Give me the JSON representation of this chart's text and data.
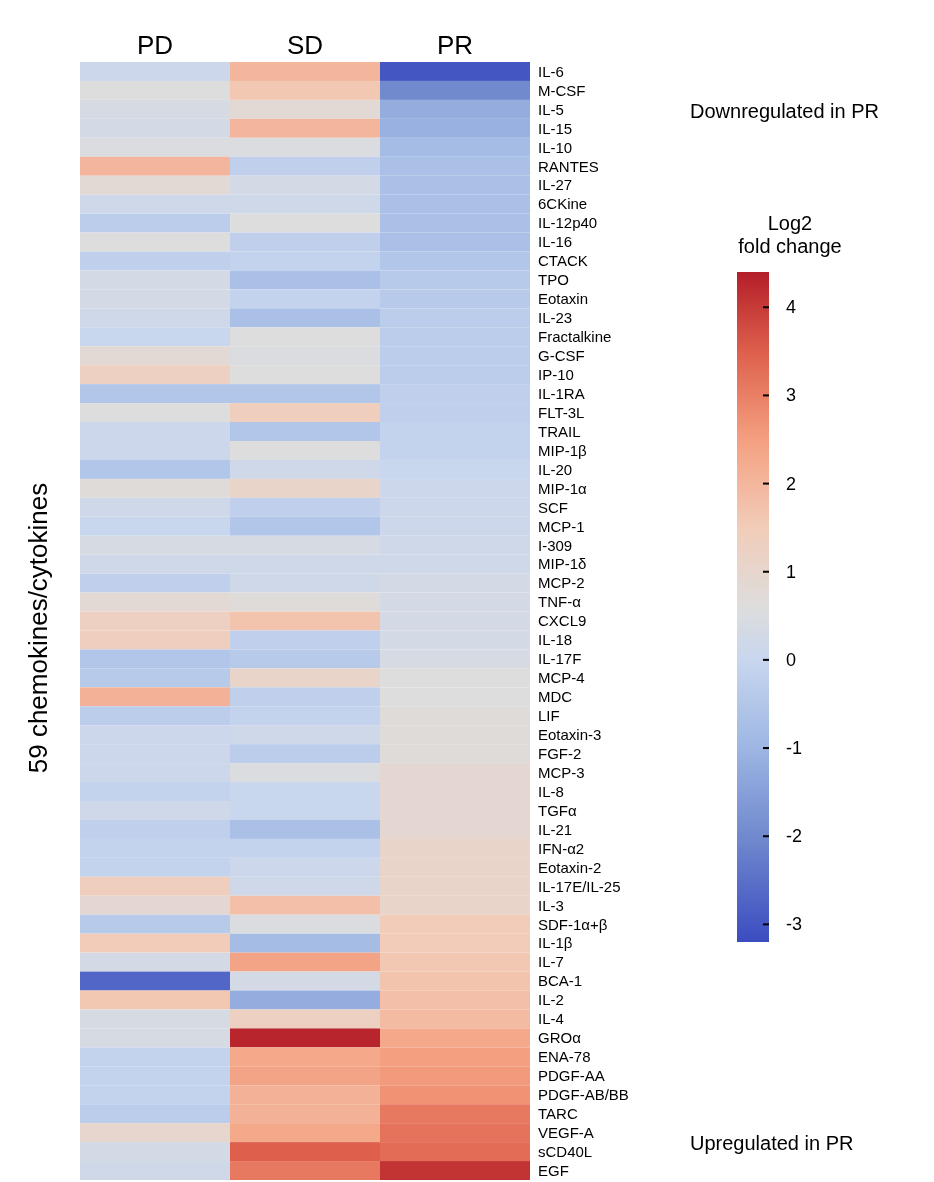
{
  "chart_data": {
    "type": "heatmap",
    "ylabel": "59 chemokines/cytokines",
    "clabel": "Log2 fold change",
    "categories": [
      "PD",
      "SD",
      "PR"
    ],
    "y_categories": [
      "IL-6",
      "M-CSF",
      "IL-5",
      "IL-15",
      "IL-10",
      "RANTES",
      "IL-27",
      "6CKine",
      "IL-12p40",
      "IL-16",
      "CTACK",
      "TPO",
      "Eotaxin",
      "IL-23",
      "Fractalkine",
      "G-CSF",
      "IP-10",
      "IL-1RA",
      "FLT-3L",
      "TRAIL",
      "MIP-1β",
      "IL-20",
      "MIP-1α",
      "SCF",
      "MCP-1",
      "I-309",
      "MIP-1δ",
      "MCP-2",
      "TNF-α",
      "CXCL9",
      "IL-18",
      "IL-17F",
      "MCP-4",
      "MDC",
      "LIF",
      "Eotaxin-3",
      "FGF-2",
      "MCP-3",
      "IL-8",
      "TGFα",
      "IL-21",
      "IFN-α2",
      "Eotaxin-2",
      "IL-17E/IL-25",
      "IL-3",
      "SDF-1α+β",
      "IL-1β",
      "IL-7",
      "BCA-1",
      "IL-2",
      "IL-4",
      "GROα",
      "ENA-78",
      "PDGF-AA",
      "PDGF-AB/BB",
      "TARC",
      "VEGF-A",
      "sCD40L",
      "EGF"
    ],
    "cells": [
      [
        0.1,
        2.0,
        -3.0
      ],
      [
        0.6,
        1.6,
        -2.0
      ],
      [
        0.4,
        0.8,
        -1.2
      ],
      [
        0.3,
        2.0,
        -1.1
      ],
      [
        0.5,
        0.5,
        -0.8
      ],
      [
        2.0,
        -0.2,
        -0.7
      ],
      [
        0.8,
        0.3,
        -0.7
      ],
      [
        0.2,
        0.2,
        -0.7
      ],
      [
        -0.3,
        0.6,
        -0.7
      ],
      [
        0.6,
        -0.2,
        -0.7
      ],
      [
        -0.2,
        -0.1,
        -0.5
      ],
      [
        0.3,
        -0.7,
        -0.4
      ],
      [
        0.3,
        -0.1,
        -0.4
      ],
      [
        0.2,
        -0.7,
        -0.3
      ],
      [
        0.0,
        0.6,
        -0.3
      ],
      [
        0.8,
        0.5,
        -0.3
      ],
      [
        1.3,
        0.6,
        -0.3
      ],
      [
        -0.5,
        -0.5,
        -0.2
      ],
      [
        0.6,
        1.4,
        -0.2
      ],
      [
        0.1,
        -0.5,
        -0.1
      ],
      [
        0.1,
        0.6,
        -0.1
      ],
      [
        -0.5,
        0.2,
        0.0
      ],
      [
        0.7,
        1.1,
        0.1
      ],
      [
        0.2,
        -0.2,
        0.1
      ],
      [
        0.0,
        -0.5,
        0.1
      ],
      [
        0.4,
        0.4,
        0.2
      ],
      [
        0.2,
        0.2,
        0.2
      ],
      [
        -0.2,
        0.2,
        0.3
      ],
      [
        0.8,
        0.7,
        0.3
      ],
      [
        1.3,
        1.7,
        0.3
      ],
      [
        1.4,
        -0.2,
        0.3
      ],
      [
        -0.5,
        -0.4,
        0.4
      ],
      [
        -0.4,
        1.1,
        0.6
      ],
      [
        2.1,
        -0.2,
        0.6
      ],
      [
        -0.3,
        -0.1,
        0.7
      ],
      [
        0.1,
        0.2,
        0.7
      ],
      [
        0.1,
        -0.3,
        0.7
      ],
      [
        0.1,
        0.5,
        0.9
      ],
      [
        -0.1,
        0.0,
        0.9
      ],
      [
        0.2,
        0.0,
        0.9
      ],
      [
        -0.2,
        -0.7,
        0.9
      ],
      [
        -0.1,
        -0.1,
        1.1
      ],
      [
        -0.1,
        0.1,
        1.1
      ],
      [
        1.4,
        0.2,
        1.1
      ],
      [
        0.9,
        1.8,
        1.1
      ],
      [
        -0.4,
        0.5,
        1.5
      ],
      [
        1.5,
        -0.8,
        1.5
      ],
      [
        0.3,
        2.4,
        1.6
      ],
      [
        -2.7,
        0.3,
        1.7
      ],
      [
        1.6,
        -1.2,
        1.8
      ],
      [
        0.4,
        1.3,
        1.9
      ],
      [
        0.4,
        4.3,
        2.3
      ],
      [
        -0.1,
        2.3,
        2.5
      ],
      [
        -0.1,
        2.4,
        2.6
      ],
      [
        -0.1,
        2.1,
        2.7
      ],
      [
        -0.3,
        2.1,
        3.1
      ],
      [
        1.0,
        2.3,
        3.2
      ],
      [
        0.3,
        3.5,
        3.3
      ],
      [
        0.2,
        3.1,
        4.1
      ]
    ],
    "clim": [
      -3.2,
      4.4
    ],
    "cticks": [
      -3,
      -2,
      -1,
      0,
      1,
      2,
      3,
      4
    ],
    "annotations": [
      "Downregulated in PR",
      "Upregulated in PR"
    ]
  }
}
